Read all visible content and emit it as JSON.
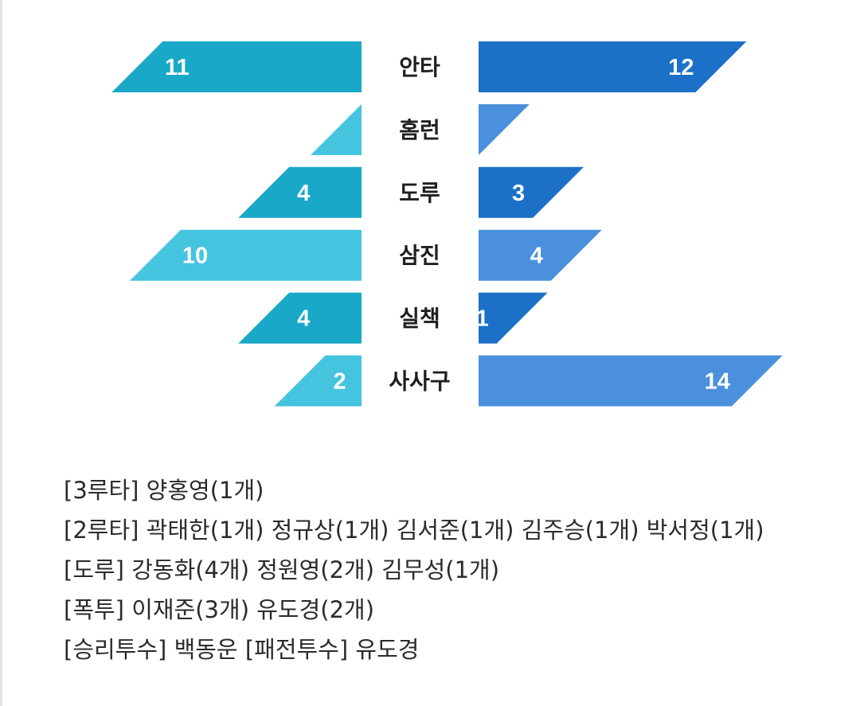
{
  "chart_data": {
    "type": "bar",
    "layout": "butterfly",
    "categories": [
      "안타",
      "홈런",
      "도루",
      "삼진",
      "실책",
      "사사구"
    ],
    "series": [
      {
        "values": [
          11,
          0,
          4,
          10,
          4,
          2
        ]
      },
      {
        "values": [
          12,
          0,
          3,
          4,
          1,
          14
        ]
      }
    ],
    "bar_colors": {
      "left": [
        "#1aa8c8",
        "#45c4e0",
        "#1aa8c8",
        "#45c4e0",
        "#1aa8c8",
        "#45c4e0"
      ],
      "right": [
        "#1c70c8",
        "#4a90dc",
        "#1c70c8",
        "#4a90dc",
        "#1c70c8",
        "#4a90dc"
      ]
    }
  },
  "notes": [
    "[3루타]  양홍영(1개)",
    "[2루타]  곽태한(1개) 정규상(1개) 김서준(1개) 김주승(1개) 박서정(1개)",
    "[도루]  강동화(4개) 정원영(2개) 김무성(1개)",
    "[폭투]  이재준(3개) 유도경(2개)",
    "[승리투수] 백동운  [패전투수] 유도경"
  ]
}
